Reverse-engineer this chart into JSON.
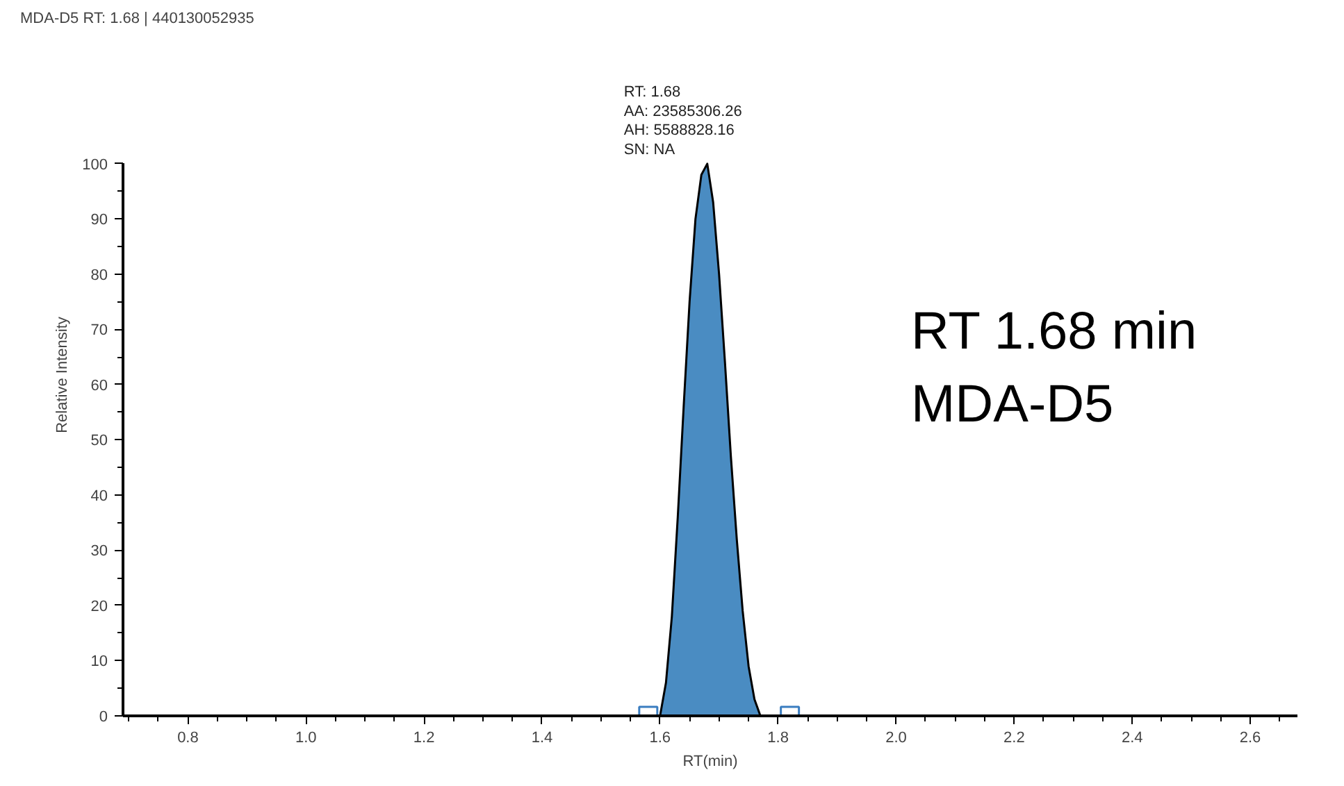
{
  "chart_data": {
    "type": "area",
    "title": "MDA-D5  RT: 1.68 | 440130052935",
    "xlabel": "RT(min)",
    "ylabel": "Relative Intensity",
    "xlim": [
      0.69,
      2.68
    ],
    "xticks": [
      {
        "value": 0.8,
        "label": "0.8"
      },
      {
        "value": 1.0,
        "label": "1.0"
      },
      {
        "value": 1.2,
        "label": "1.2"
      },
      {
        "value": 1.4,
        "label": "1.4"
      },
      {
        "value": 1.6,
        "label": "1.6"
      },
      {
        "value": 1.8,
        "label": "1.8"
      },
      {
        "value": 2.0,
        "label": "2.0"
      },
      {
        "value": 2.2,
        "label": "2.2"
      },
      {
        "value": 2.4,
        "label": "2.4"
      },
      {
        "value": 2.6,
        "label": "2.6"
      }
    ],
    "ylim": [
      0,
      100
    ],
    "yticks": [
      0,
      10,
      20,
      30,
      40,
      50,
      60,
      70,
      80,
      90,
      100
    ],
    "grid": false,
    "series": [
      {
        "color": "#4a8cc2",
        "x": [
          0.69,
          1.6,
          1.61,
          1.62,
          1.63,
          1.64,
          1.65,
          1.66,
          1.67,
          1.68,
          1.69,
          1.7,
          1.71,
          1.72,
          1.73,
          1.74,
          1.75,
          1.76,
          1.77,
          2.68
        ],
        "values": [
          0,
          0,
          6,
          18,
          36,
          56,
          75,
          90,
          98,
          100,
          93,
          80,
          64,
          47,
          32,
          19,
          9,
          3,
          0,
          0
        ]
      },
      {
        "type": "scatter",
        "marker": "square",
        "color": "#3a7dc0",
        "x": [
          1.58,
          1.82
        ],
        "values": [
          0,
          0
        ]
      }
    ],
    "annotations": [
      {
        "text": "RT: 1.68\nAA: 23585306.26\nAH: 5588828.16\nSN: NA",
        "x": 1.68,
        "y": 100
      },
      "RT 1.68 min\nMDA-D5"
    ]
  }
}
